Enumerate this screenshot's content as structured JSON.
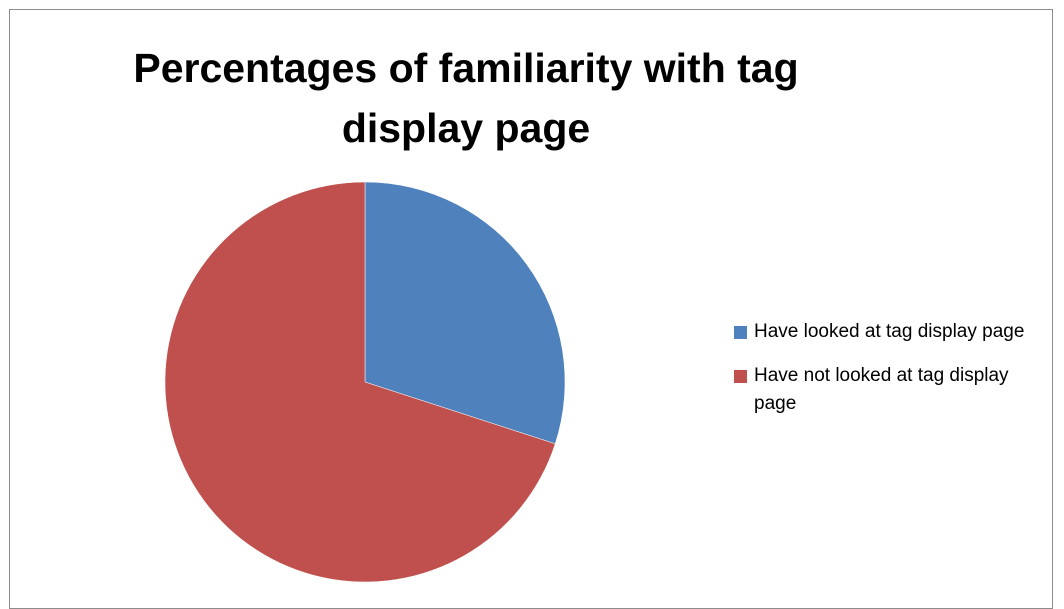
{
  "chart_data": {
    "type": "pie",
    "title": "Percentages of familiarity with tag display page",
    "categories": [
      "Have looked at tag display page",
      "Have not looked at tag display page"
    ],
    "values": [
      30,
      70
    ],
    "colors": [
      "#4f81bd",
      "#c0504d"
    ],
    "legend_position": "right"
  }
}
